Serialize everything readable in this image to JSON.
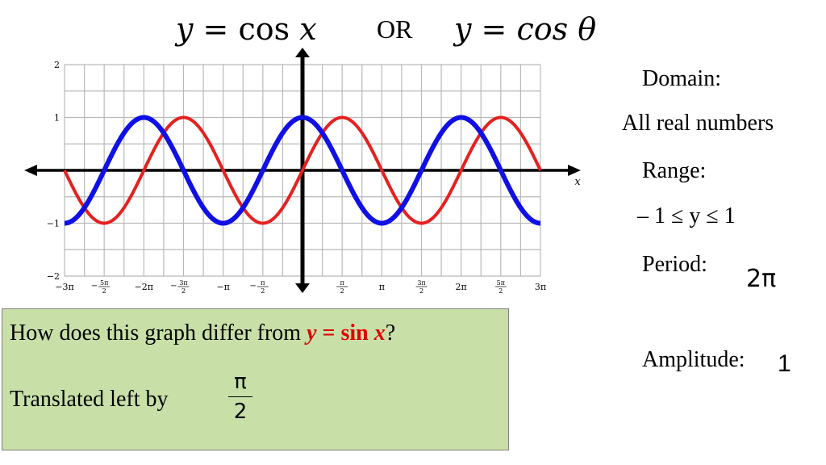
{
  "header": {
    "left_eq_y": "y",
    "left_eq_op": " = ",
    "left_eq_fn": "cos",
    "left_eq_var": " x",
    "or_text": "OR",
    "right_eq": "y = cos θ"
  },
  "info": {
    "domain_label": "Domain:",
    "domain_value": "All real numbers",
    "range_label": "Range:",
    "range_value": "– 1 ≤ y ≤ 1",
    "period_label": "Period:",
    "period_value": "2π",
    "amplitude_label": "Amplitude:",
    "amplitude_value": "1"
  },
  "question": {
    "prefix": "How does this graph differ from ",
    "eq_y": "y",
    "eq_mid": " = sin ",
    "eq_x": "x",
    "suffix": "?",
    "answer": "Translated left by",
    "frac_num": "π",
    "frac_den": "2"
  },
  "chart_data": {
    "type": "line",
    "xlabel": "x",
    "xlim": [
      -9.42477796,
      9.42477796
    ],
    "ylim": [
      -2,
      2
    ],
    "grid": true,
    "y_ticks": [
      {
        "value": 2,
        "label": "2"
      },
      {
        "value": 1,
        "label": "1"
      },
      {
        "value": -1,
        "label": "−1"
      },
      {
        "value": -2,
        "label": "−2"
      }
    ],
    "x_ticks": [
      {
        "value": -9.42477796,
        "label": "−3π"
      },
      {
        "value": -7.85398163,
        "label": "−5π/2"
      },
      {
        "value": -6.28318531,
        "label": "−2π"
      },
      {
        "value": -4.71238898,
        "label": "−3π/2"
      },
      {
        "value": -3.14159265,
        "label": "−π"
      },
      {
        "value": -1.57079633,
        "label": "−π/2"
      },
      {
        "value": 1.57079633,
        "label": "π/2"
      },
      {
        "value": 3.14159265,
        "label": "π"
      },
      {
        "value": 4.71238898,
        "label": "3π/2"
      },
      {
        "value": 6.28318531,
        "label": "2π"
      },
      {
        "value": 7.85398163,
        "label": "5π/2"
      },
      {
        "value": 9.42477796,
        "label": "3π"
      }
    ],
    "series": [
      {
        "function": "sin",
        "color": "#e62020",
        "x_range": [
          -9.42477796,
          9.42477796
        ]
      },
      {
        "function": "cos",
        "color": "#1010e6",
        "x_range": [
          -9.42477796,
          9.42477796
        ]
      }
    ]
  }
}
